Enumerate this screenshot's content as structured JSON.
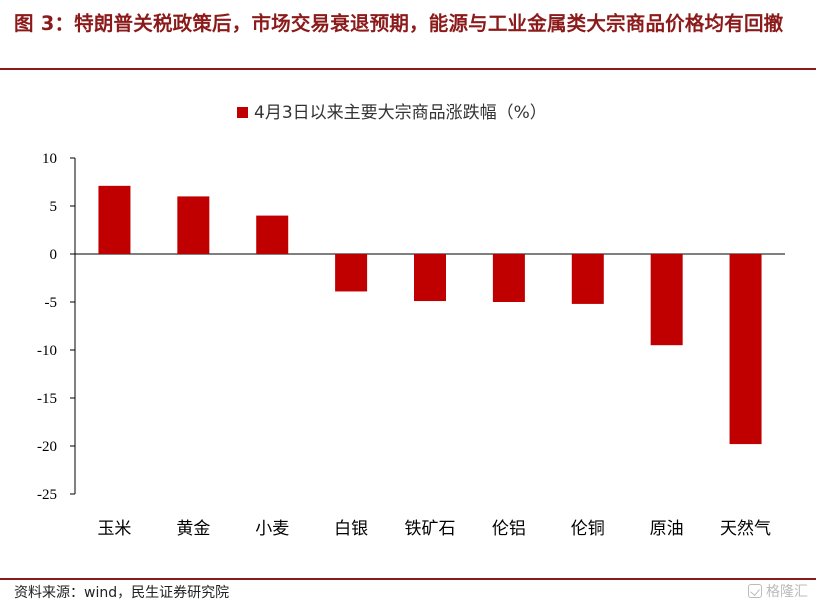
{
  "title": "图 3：特朗普关税政策后，市场交易衰退预期，能源与工业金属类大宗商品价格均有回撤",
  "source": "资料来源：wind，民生证券研究院",
  "watermark": "格隆汇",
  "colors": {
    "bar": "#c00000",
    "title": "#8b1a1a",
    "axis": "#000000"
  },
  "chart_data": {
    "type": "bar",
    "legend": "4月3日以来主要大宗商品涨跌幅（%）",
    "legend_position": "top-center",
    "categories": [
      "玉米",
      "黄金",
      "小麦",
      "白银",
      "铁矿石",
      "伦铝",
      "伦铜",
      "原油",
      "天然气"
    ],
    "series": [
      {
        "name": "4月3日以来主要大宗商品涨跌幅（%）",
        "values": [
          7.1,
          6.0,
          4.0,
          -3.9,
          -4.9,
          -5.0,
          -5.2,
          -9.5,
          -19.8
        ]
      }
    ],
    "ylim": [
      -25,
      10
    ],
    "yticks": [
      10,
      5,
      0,
      -5,
      -10,
      -15,
      -20,
      -25
    ],
    "grid": false
  }
}
